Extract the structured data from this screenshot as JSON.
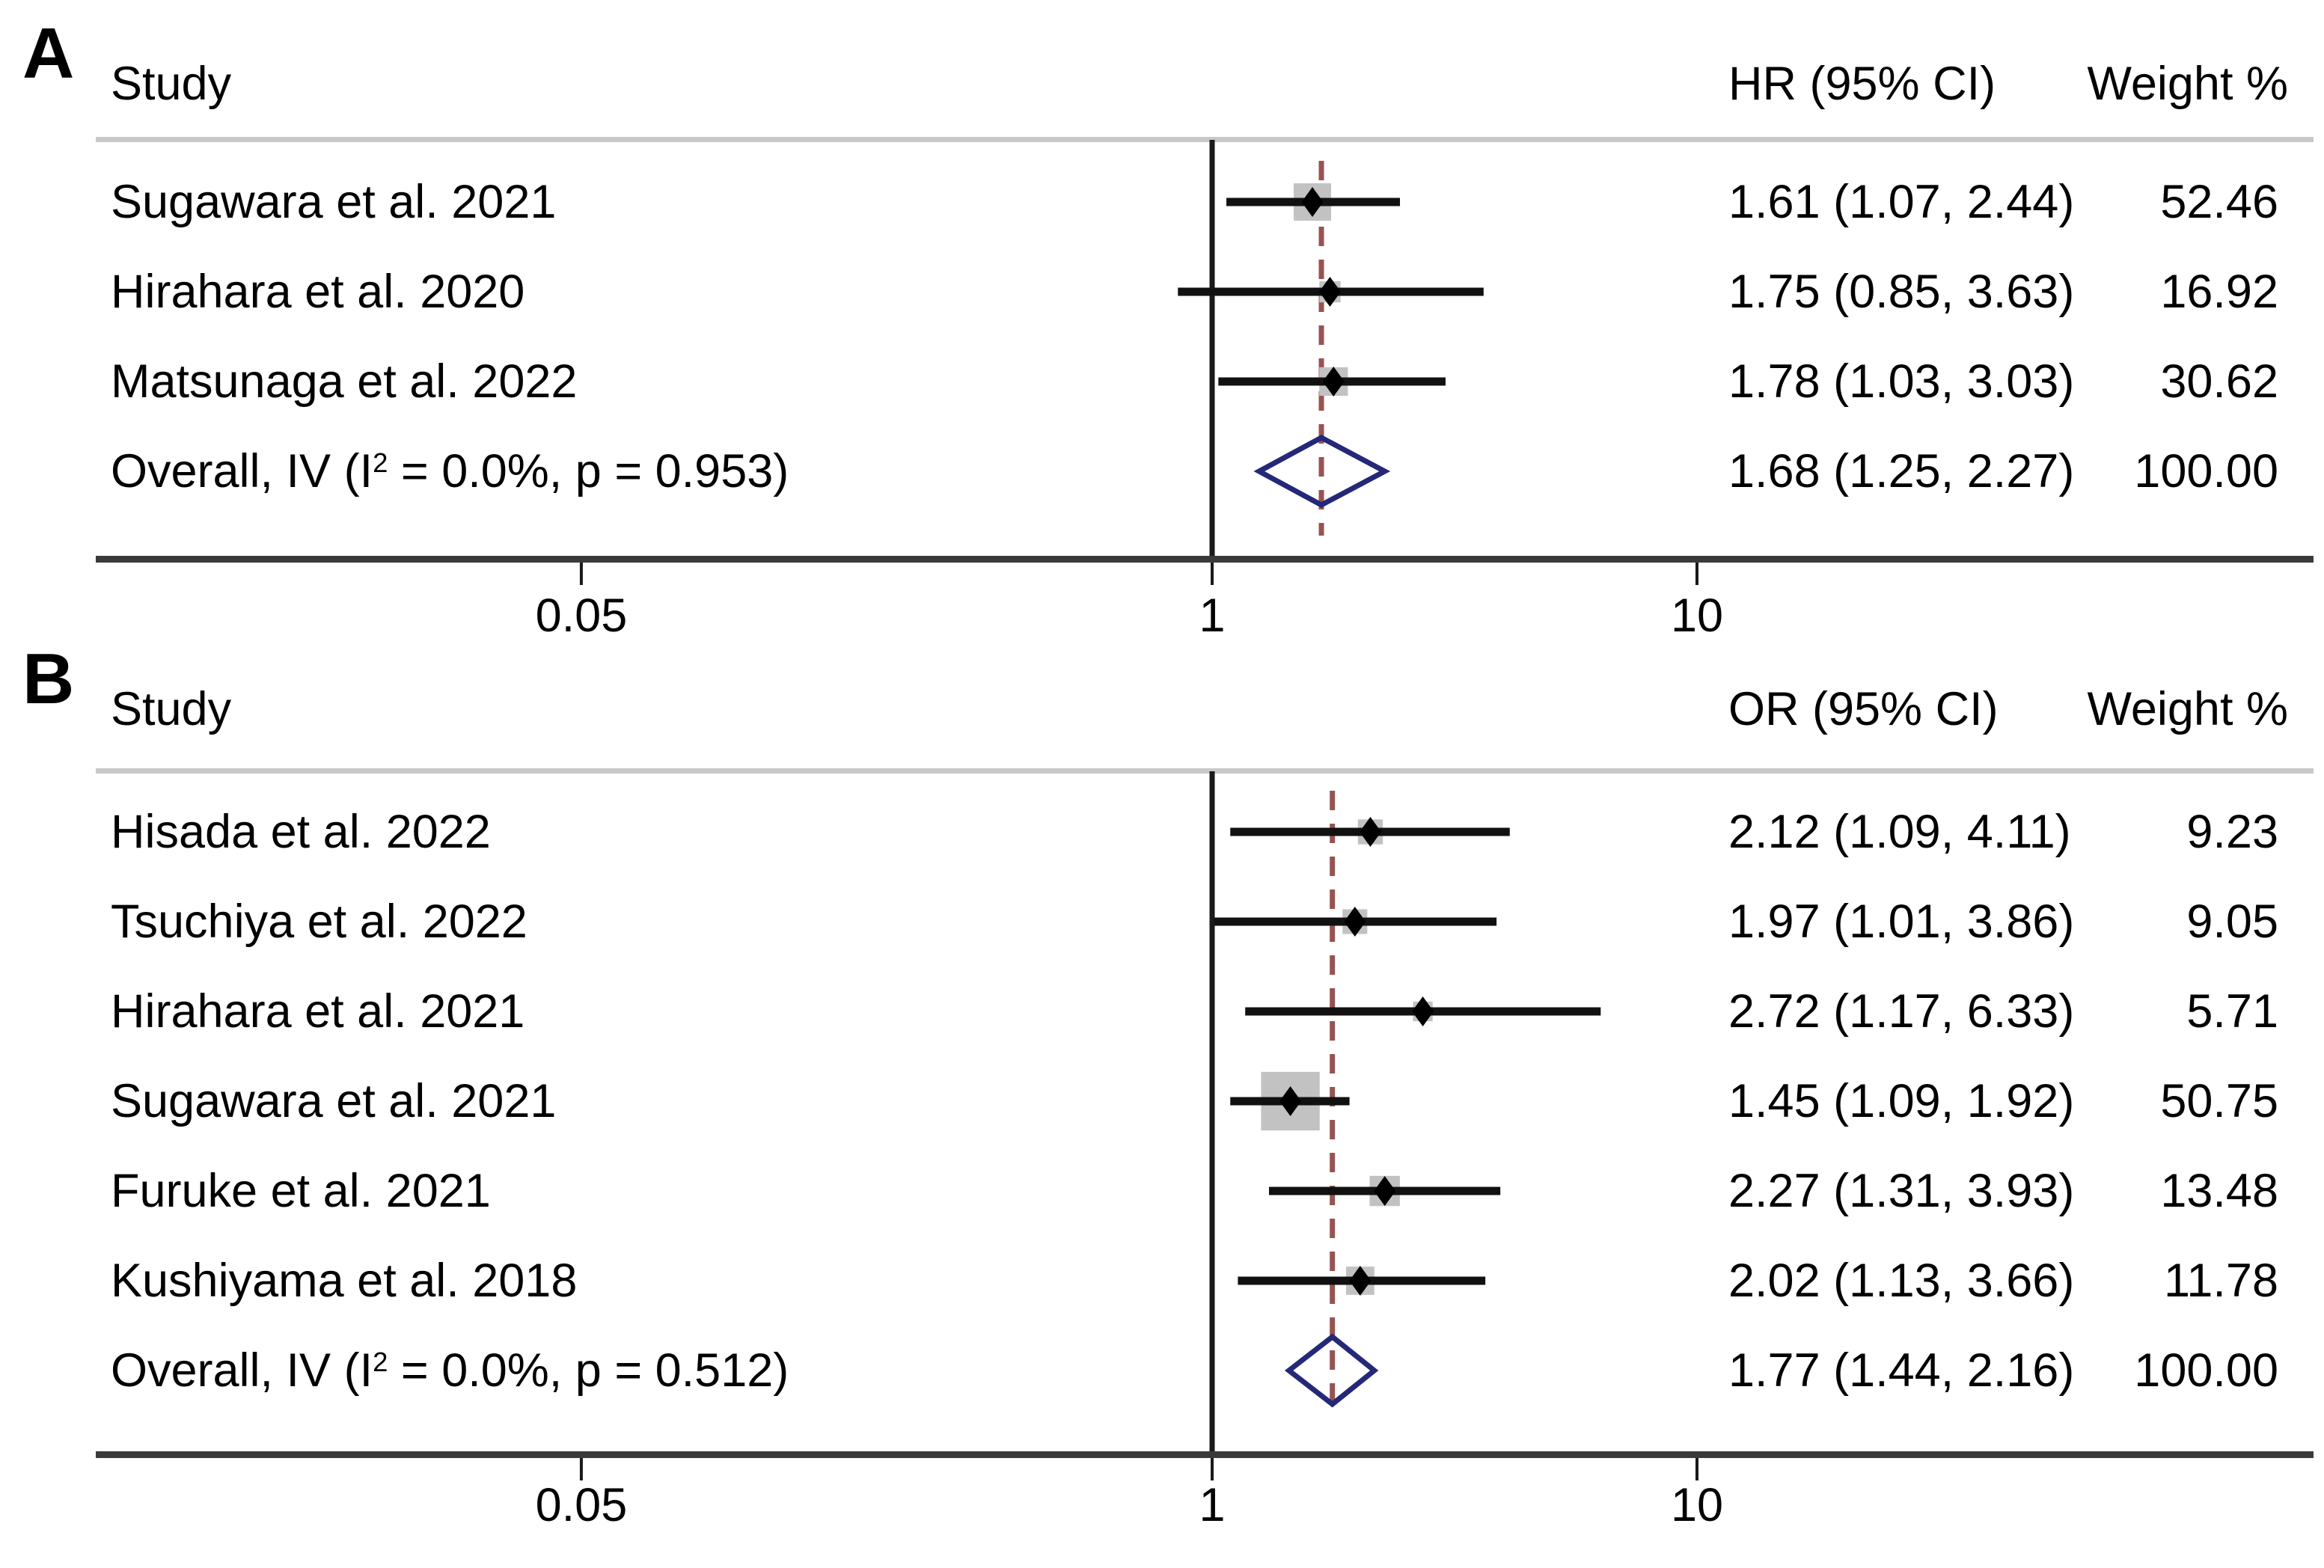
{
  "colors": {
    "diamond_outline": "#252878",
    "dashed_overall_line": "#975352",
    "weight_box": "#c2c2c2",
    "whisker": "#111111",
    "point_marker": "#000000",
    "axis_line": "#3a3a3a",
    "header_rule": "#c8c8c8",
    "null_line": "#1a1a1a",
    "text": "#000000",
    "background": "#ffffff"
  },
  "chart_data": [
    {
      "type": "forest",
      "panel_label": "A",
      "effect_measure": "HR",
      "columns": {
        "study": "Study",
        "effect": "HR (95% CI)",
        "weight": "Weight %"
      },
      "x_axis": {
        "scale": "log",
        "tick_labels": [
          "0.05",
          "1",
          "10"
        ],
        "tick_values": [
          0.05,
          1,
          10
        ],
        "null_value": 1,
        "grid": false
      },
      "studies": [
        {
          "study": "Sugawara et al. 2021",
          "effect": 1.61,
          "ci_low": 1.07,
          "ci_high": 2.44,
          "weight": 52.46,
          "effect_text": "1.61 (1.07, 2.44)",
          "weight_text": "52.46"
        },
        {
          "study": "Hirahara et al. 2020",
          "effect": 1.75,
          "ci_low": 0.85,
          "ci_high": 3.63,
          "weight": 16.92,
          "effect_text": "1.75 (0.85, 3.63)",
          "weight_text": "16.92"
        },
        {
          "study": "Matsunaga et al. 2022",
          "effect": 1.78,
          "ci_low": 1.03,
          "ci_high": 3.03,
          "weight": 30.62,
          "effect_text": "1.78 (1.03, 3.03)",
          "weight_text": "30.62"
        }
      ],
      "overall": {
        "label_pre": "Overall, IV (I",
        "label_sup": "2",
        "label_post": " = 0.0%, p = 0.953)",
        "effect": 1.68,
        "ci_low": 1.25,
        "ci_high": 2.27,
        "effect_text": "1.68 (1.25, 2.27)",
        "weight_text": "100.00"
      }
    },
    {
      "type": "forest",
      "panel_label": "B",
      "effect_measure": "OR",
      "columns": {
        "study": "Study",
        "effect": "OR (95% CI)",
        "weight": "Weight %"
      },
      "x_axis": {
        "scale": "log",
        "tick_labels": [
          "0.05",
          "1",
          "10"
        ],
        "tick_values": [
          0.05,
          1,
          10
        ],
        "null_value": 1,
        "grid": false
      },
      "studies": [
        {
          "study": "Hisada et al. 2022",
          "effect": 2.12,
          "ci_low": 1.09,
          "ci_high": 4.11,
          "weight": 9.23,
          "effect_text": "2.12 (1.09, 4.11)",
          "weight_text": "9.23"
        },
        {
          "study": "Tsuchiya et al. 2022",
          "effect": 1.97,
          "ci_low": 1.01,
          "ci_high": 3.86,
          "weight": 9.05,
          "effect_text": "1.97 (1.01, 3.86)",
          "weight_text": "9.05"
        },
        {
          "study": "Hirahara et al. 2021",
          "effect": 2.72,
          "ci_low": 1.17,
          "ci_high": 6.33,
          "weight": 5.71,
          "effect_text": "2.72 (1.17, 6.33)",
          "weight_text": "5.71"
        },
        {
          "study": "Sugawara et al. 2021",
          "effect": 1.45,
          "ci_low": 1.09,
          "ci_high": 1.92,
          "weight": 50.75,
          "effect_text": "1.45 (1.09, 1.92)",
          "weight_text": "50.75"
        },
        {
          "study": "Furuke et al. 2021",
          "effect": 2.27,
          "ci_low": 1.31,
          "ci_high": 3.93,
          "weight": 13.48,
          "effect_text": "2.27 (1.31, 3.93)",
          "weight_text": "13.48"
        },
        {
          "study": "Kushiyama et al. 2018",
          "effect": 2.02,
          "ci_low": 1.13,
          "ci_high": 3.66,
          "weight": 11.78,
          "effect_text": "2.02 (1.13, 3.66)",
          "weight_text": "11.78"
        }
      ],
      "overall": {
        "label_pre": "Overall, IV (I",
        "label_sup": "2",
        "label_post": " = 0.0%, p = 0.512)",
        "effect": 1.77,
        "ci_low": 1.44,
        "ci_high": 2.16,
        "effect_text": "1.77 (1.44, 2.16)",
        "weight_text": "100.00"
      }
    }
  ]
}
